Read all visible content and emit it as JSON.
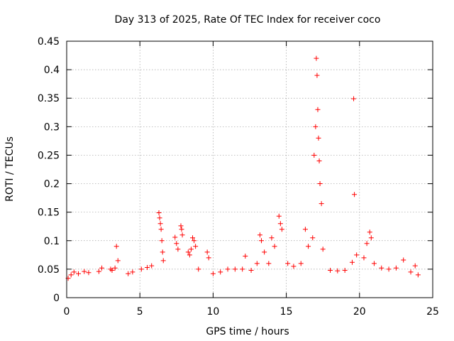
{
  "chart_data": {
    "type": "scatter",
    "title": "Day 313 of 2025, Rate Of TEC Index for receiver coco",
    "xlabel": "GPS time / hours",
    "ylabel": "ROTI / TECUs",
    "xlim": [
      0,
      25
    ],
    "ylim": [
      0,
      0.45
    ],
    "x_ticks": [
      0,
      5,
      10,
      15,
      20,
      25
    ],
    "y_ticks": [
      0,
      0.05,
      0.1,
      0.15,
      0.2,
      0.25,
      0.3,
      0.35,
      0.4,
      0.45
    ],
    "x_tick_labels": [
      "0",
      "5",
      "10",
      "15",
      "20",
      "25"
    ],
    "y_tick_labels": [
      "0",
      "0.05",
      "0.1",
      "0.15",
      "0.2",
      "0.25",
      "0.3",
      "0.35",
      "0.4",
      "0.45"
    ],
    "grid": true,
    "marker": "+",
    "color": "#ff0000",
    "series": [
      {
        "points": [
          [
            0.1,
            0.034
          ],
          [
            0.3,
            0.04
          ],
          [
            0.5,
            0.045
          ],
          [
            0.8,
            0.042
          ],
          [
            1.2,
            0.046
          ],
          [
            1.5,
            0.044
          ],
          [
            2.2,
            0.046
          ],
          [
            2.4,
            0.052
          ],
          [
            3.0,
            0.05
          ],
          [
            3.1,
            0.048
          ],
          [
            3.3,
            0.052
          ],
          [
            3.4,
            0.09
          ],
          [
            3.5,
            0.065
          ],
          [
            4.2,
            0.042
          ],
          [
            4.5,
            0.045
          ],
          [
            5.1,
            0.05
          ],
          [
            5.5,
            0.053
          ],
          [
            5.8,
            0.056
          ],
          [
            6.3,
            0.149
          ],
          [
            6.35,
            0.14
          ],
          [
            6.4,
            0.13
          ],
          [
            6.45,
            0.12
          ],
          [
            6.5,
            0.1
          ],
          [
            6.55,
            0.08
          ],
          [
            6.6,
            0.065
          ],
          [
            7.4,
            0.106
          ],
          [
            7.5,
            0.095
          ],
          [
            7.6,
            0.085
          ],
          [
            7.8,
            0.126
          ],
          [
            7.85,
            0.12
          ],
          [
            7.9,
            0.11
          ],
          [
            8.3,
            0.08
          ],
          [
            8.4,
            0.075
          ],
          [
            8.5,
            0.085
          ],
          [
            8.6,
            0.105
          ],
          [
            8.7,
            0.1
          ],
          [
            8.8,
            0.09
          ],
          [
            9.0,
            0.05
          ],
          [
            9.6,
            0.08
          ],
          [
            9.7,
            0.07
          ],
          [
            10.0,
            0.042
          ],
          [
            10.5,
            0.045
          ],
          [
            11.0,
            0.05
          ],
          [
            11.5,
            0.05
          ],
          [
            12.0,
            0.05
          ],
          [
            12.2,
            0.073
          ],
          [
            12.6,
            0.048
          ],
          [
            13.0,
            0.06
          ],
          [
            13.2,
            0.11
          ],
          [
            13.3,
            0.1
          ],
          [
            13.5,
            0.08
          ],
          [
            13.8,
            0.06
          ],
          [
            14.0,
            0.105
          ],
          [
            14.2,
            0.09
          ],
          [
            14.5,
            0.143
          ],
          [
            14.6,
            0.13
          ],
          [
            14.7,
            0.12
          ],
          [
            15.1,
            0.06
          ],
          [
            15.5,
            0.055
          ],
          [
            16.0,
            0.06
          ],
          [
            16.3,
            0.12
          ],
          [
            16.5,
            0.09
          ],
          [
            16.8,
            0.105
          ],
          [
            16.9,
            0.25
          ],
          [
            17.0,
            0.3
          ],
          [
            17.05,
            0.42
          ],
          [
            17.1,
            0.39
          ],
          [
            17.15,
            0.33
          ],
          [
            17.2,
            0.28
          ],
          [
            17.25,
            0.24
          ],
          [
            17.3,
            0.2
          ],
          [
            17.4,
            0.165
          ],
          [
            17.5,
            0.085
          ],
          [
            18.0,
            0.048
          ],
          [
            18.5,
            0.047
          ],
          [
            19.0,
            0.048
          ],
          [
            19.5,
            0.062
          ],
          [
            19.6,
            0.349
          ],
          [
            19.65,
            0.181
          ],
          [
            19.8,
            0.075
          ],
          [
            20.3,
            0.07
          ],
          [
            20.5,
            0.095
          ],
          [
            20.7,
            0.115
          ],
          [
            20.8,
            0.105
          ],
          [
            21.0,
            0.06
          ],
          [
            21.5,
            0.052
          ],
          [
            22.0,
            0.05
          ],
          [
            22.5,
            0.052
          ],
          [
            23.0,
            0.066
          ],
          [
            23.5,
            0.045
          ],
          [
            23.8,
            0.056
          ],
          [
            24.0,
            0.04
          ]
        ]
      }
    ]
  }
}
